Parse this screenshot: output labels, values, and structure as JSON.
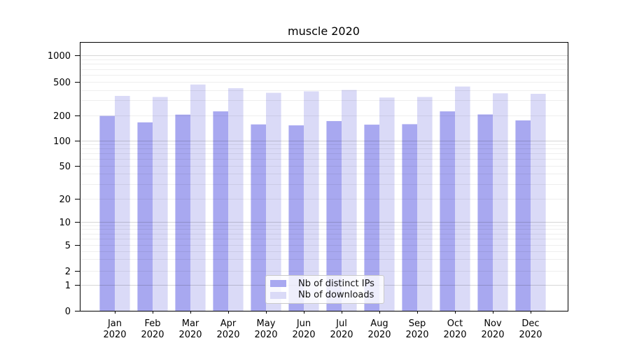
{
  "figure": {
    "background": "#ffffff"
  },
  "chart_data": {
    "type": "bar",
    "title": "muscle 2020",
    "categories": [
      "Jan",
      "Feb",
      "Mar",
      "Apr",
      "May",
      "Jun",
      "Jul",
      "Aug",
      "Sep",
      "Oct",
      "Nov",
      "Dec"
    ],
    "x_tick_second_line": "2020",
    "series": [
      {
        "name": "Nb of distinct IPs",
        "color": "#a8a8f0",
        "values": [
          196,
          164,
          203,
          222,
          155,
          151,
          170,
          154,
          156,
          222,
          204,
          173
        ]
      },
      {
        "name": "Nb of downloads",
        "color": "#dadaf7",
        "values": [
          340,
          330,
          465,
          420,
          370,
          385,
          400,
          325,
          330,
          440,
          365,
          360
        ]
      }
    ],
    "y_scale": "symlog",
    "y_tick_values": [
      0,
      1,
      2,
      5,
      10,
      20,
      50,
      100,
      200,
      500,
      1000
    ],
    "y_tick_labels": [
      "0",
      "1",
      "2",
      "5",
      "10",
      "20",
      "50",
      "100",
      "200",
      "500",
      "1000"
    ],
    "ylim": [
      0,
      1400
    ],
    "grid": "both",
    "grid_major_values": [
      1,
      10,
      100,
      1000
    ],
    "legend_position": "lower center",
    "axis_color": "#000000"
  }
}
